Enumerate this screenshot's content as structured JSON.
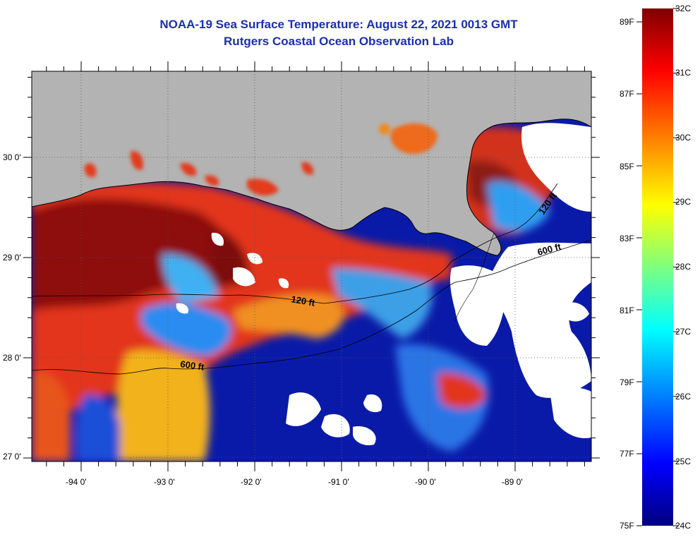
{
  "title": {
    "line1": "NOAA-19 Sea Surface Temperature:  August 22, 2021 0013 GMT",
    "line2": "Rutgers Coastal Ocean Observation Lab"
  },
  "map": {
    "latitude_labels": [
      "30 0'",
      "29 0'",
      "28 0'",
      "27 0'"
    ],
    "longitude_labels": [
      "-94 0'",
      "-93 0'",
      "-92 0'",
      "-91 0'",
      "-90 0'",
      "-89 0'"
    ],
    "contour_labels": [
      "600 ft",
      "600 ft",
      "120 ft",
      "120 ft"
    ],
    "land_color": "#b3b3b3",
    "cloud_color": "#ffffff"
  },
  "colorbar": {
    "fahrenheit_labels": [
      "89F",
      "87F",
      "85F",
      "83F",
      "81F",
      "79F",
      "77F",
      "75F"
    ],
    "celsius_labels": [
      "32C",
      "31C",
      "30C",
      "29C",
      "28C",
      "27C",
      "26C",
      "25C",
      "24C"
    ],
    "colormap": [
      "#00007f",
      "#0000ff",
      "#007fff",
      "#00ffff",
      "#7fff7f",
      "#ffff00",
      "#ff7f00",
      "#ff0000",
      "#7f0000"
    ]
  }
}
